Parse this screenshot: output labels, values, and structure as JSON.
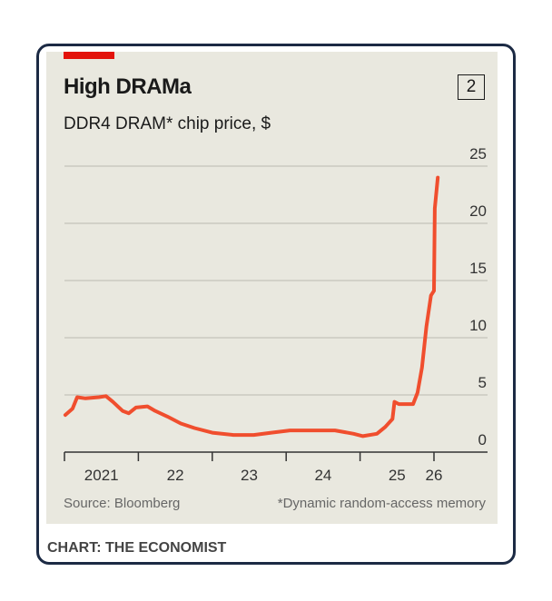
{
  "chart_data": {
    "type": "line",
    "title": "High DRAMa",
    "subtitle": "DDR4 DRAM* chip price, $",
    "chart_number": "2",
    "ylim": [
      0,
      25
    ],
    "yticks": [
      0,
      5,
      10,
      15,
      20,
      25
    ],
    "ytick_labels": [
      "0",
      "5",
      "10",
      "15",
      "20",
      "25"
    ],
    "xticks": [
      "2021-01-01",
      "2022-01-01",
      "2023-01-01",
      "2024-01-01",
      "2025-01-01",
      "2026-01-01"
    ],
    "xtick_labels": [
      "2021",
      "22",
      "23",
      "24",
      "25",
      "26"
    ],
    "grid": true,
    "line_color": "#f04e2e",
    "series": [
      {
        "x": [
          "2021-01-05",
          "2021-02-10",
          "2021-03-05",
          "2021-04-15",
          "2021-06-20",
          "2021-07-25",
          "2021-08-28",
          "2021-10-15",
          "2021-11-15",
          "2021-12-20",
          "2022-02-15",
          "2022-03-25",
          "2022-05-25",
          "2022-07-30",
          "2022-10-05",
          "2023-01-01",
          "2023-04-15",
          "2023-07-25",
          "2023-10-20",
          "2024-01-20",
          "2024-05-15",
          "2024-08-30",
          "2024-11-30",
          "2025-01-15",
          "2025-03-25",
          "2025-05-05",
          "2025-06-10",
          "2025-06-20",
          "2025-07-12",
          "2025-09-20",
          "2025-10-12",
          "2025-11-03",
          "2025-11-25",
          "2025-12-17",
          "2026-01-01",
          "2026-01-05",
          "2026-01-20"
        ],
        "y": [
          3.25,
          3.8,
          4.8,
          4.7,
          4.8,
          4.9,
          4.4,
          3.6,
          3.4,
          3.9,
          4.0,
          3.6,
          3.1,
          2.5,
          2.1,
          1.7,
          1.5,
          1.5,
          1.7,
          1.9,
          1.9,
          1.9,
          1.6,
          1.4,
          1.6,
          2.2,
          2.9,
          4.4,
          4.2,
          4.2,
          5.2,
          7.4,
          11,
          13.7,
          14.1,
          21.3,
          24
        ]
      }
    ],
    "source": "Source: Bloomberg",
    "footnote": "*Dynamic random-access memory"
  },
  "credit": "CHART: THE ECONOMIST"
}
